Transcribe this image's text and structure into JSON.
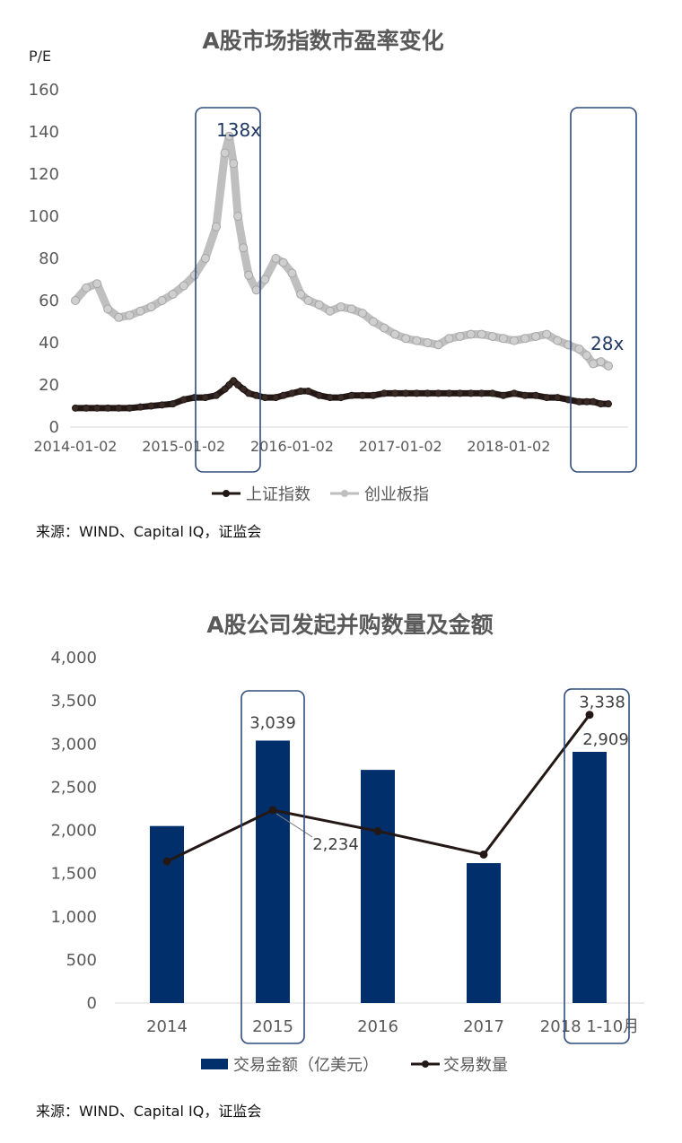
{
  "charts": [
    {
      "title": "A股市场指数市盈率变化",
      "y_unit": "P/E",
      "source": "来源：WIND、Capital IQ，证监会",
      "annotations": [
        "138x",
        "28x"
      ]
    },
    {
      "title": "A股公司发起并购数量及金额",
      "source": "来源：WIND、Capital IQ，证监会"
    }
  ],
  "chart_data": [
    {
      "type": "line",
      "title": "A股市场指数市盈率变化",
      "ylabel": "P/E",
      "ylim": [
        0,
        160
      ],
      "yticks": [
        "0",
        "20",
        "40",
        "60",
        "80",
        "100",
        "120",
        "140",
        "160"
      ],
      "xticks": [
        "2014-01-02",
        "2015-01-02",
        "2016-01-02",
        "2017-01-02",
        "2018-01-02"
      ],
      "x_format": "year_fraction",
      "x": [
        2014.0,
        2014.1,
        2014.2,
        2014.3,
        2014.4,
        2014.5,
        2014.6,
        2014.7,
        2014.8,
        2014.9,
        2015.0,
        2015.1,
        2015.2,
        2015.3,
        2015.38,
        2015.42,
        2015.46,
        2015.5,
        2015.55,
        2015.6,
        2015.67,
        2015.75,
        2015.85,
        2015.92,
        2016.0,
        2016.08,
        2016.15,
        2016.25,
        2016.35,
        2016.45,
        2016.55,
        2016.65,
        2016.75,
        2016.85,
        2016.95,
        2017.05,
        2017.15,
        2017.25,
        2017.35,
        2017.45,
        2017.55,
        2017.65,
        2017.75,
        2017.85,
        2017.95,
        2018.05,
        2018.15,
        2018.25,
        2018.35,
        2018.45,
        2018.55,
        2018.65,
        2018.72,
        2018.78,
        2018.85,
        2018.92
      ],
      "series": [
        {
          "name": "上证指数",
          "color": "#231815",
          "values": [
            9,
            9,
            9,
            9,
            9,
            9,
            9.5,
            10,
            10.5,
            11,
            13,
            14,
            14,
            15,
            18,
            20,
            22,
            20,
            18,
            16,
            15,
            14,
            14,
            15,
            16,
            17,
            17,
            15,
            14,
            14,
            15,
            15,
            15,
            16,
            16,
            16,
            16,
            16,
            16,
            16,
            16,
            16,
            16,
            16,
            15,
            16,
            15,
            15,
            14,
            14,
            13,
            12,
            12,
            12,
            11,
            11
          ]
        },
        {
          "name": "创业板指",
          "color": "#bfbfbf",
          "values": [
            60,
            66,
            68,
            56,
            52,
            53,
            55,
            57,
            60,
            63,
            67,
            72,
            80,
            95,
            130,
            138,
            125,
            100,
            85,
            72,
            65,
            70,
            80,
            78,
            73,
            63,
            60,
            58,
            55,
            57,
            56,
            54,
            50,
            47,
            44,
            42,
            41,
            40,
            39,
            42,
            43,
            44,
            44,
            43,
            42,
            41,
            42,
            43,
            44,
            41,
            39,
            37,
            34,
            30,
            31,
            29
          ]
        }
      ],
      "legend": [
        "上证指数",
        "创业板指"
      ],
      "legend_position": "bottom",
      "grid": false
    },
    {
      "type": "bar",
      "title": "A股公司发起并购数量及金额",
      "categories": [
        "2014",
        "2015",
        "2016",
        "2017",
        "2018 1-10月"
      ],
      "ylim": [
        0,
        4000
      ],
      "yticks": [
        "0",
        "500",
        "1,000",
        "1,500",
        "2,000",
        "2,500",
        "3,000",
        "3,500",
        "4,000"
      ],
      "series": [
        {
          "name": "交易金额（亿美元）",
          "type": "bar",
          "color": "#002f6c",
          "values": [
            2050,
            3039,
            2700,
            1620,
            2909
          ],
          "labels": [
            "",
            "3,039",
            "",
            "",
            "2,909"
          ]
        },
        {
          "name": "交易数量",
          "type": "line",
          "color": "#231815",
          "values": [
            1640,
            2234,
            1990,
            1720,
            3338
          ],
          "labels": [
            "",
            "2,234",
            "",
            "",
            "3,338"
          ]
        }
      ],
      "legend": [
        "交易金额（亿美元）",
        "交易数量"
      ],
      "legend_position": "bottom",
      "grid": false
    }
  ]
}
